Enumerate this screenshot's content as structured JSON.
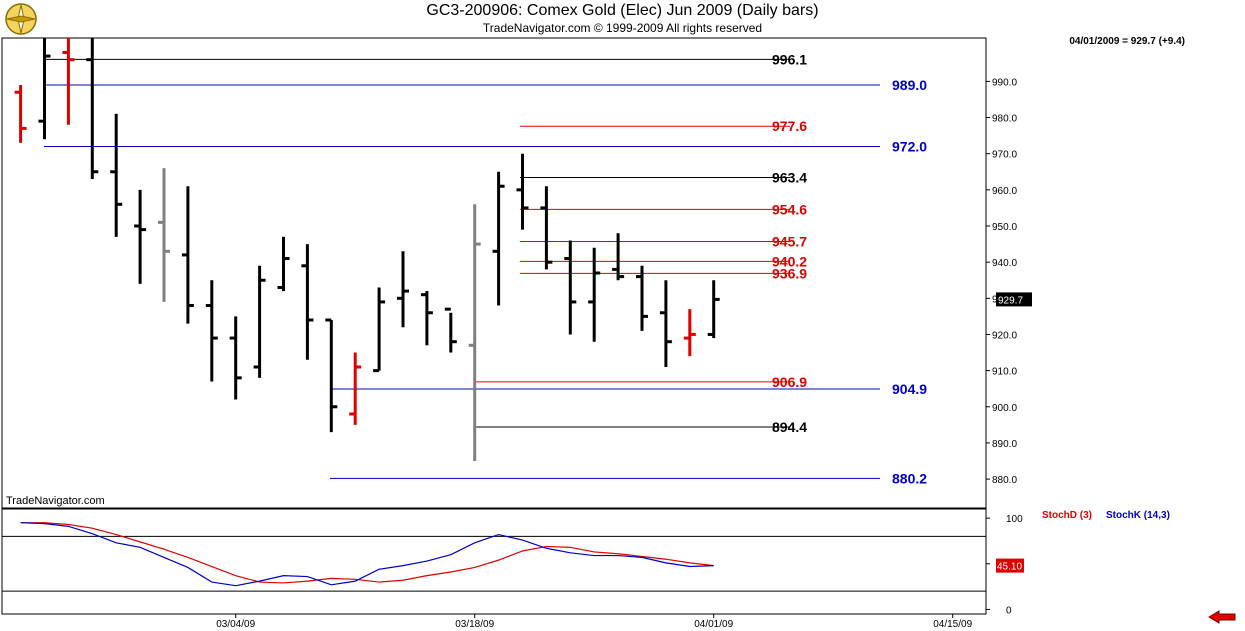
{
  "header": {
    "title": "GC3-200906:  Comex Gold (Elec) Jun 2009  (Daily bars)",
    "copyright": "TradeNavigator.com © 1999-2009 All rights reserved",
    "quote": "04/01/2009 = 929.7 (+9.4)",
    "watermark": "TradeNavigator.com"
  },
  "colors": {
    "bar_up": "#000000",
    "bar_red": "#e00000",
    "bar_gray": "#808080",
    "blue_line": "#0000cc",
    "red_line": "#e00000",
    "black_line": "#000000",
    "stoch_d": "#e00000",
    "stoch_k": "#0000cc"
  },
  "icons": {
    "logo": "compass-logo-icon",
    "scroll": "left-arrow-icon"
  },
  "chart_data": [
    {
      "type": "bar",
      "subtype": "ohlc",
      "ylim": [
        872,
        1002
      ],
      "yticks": [
        "880.0",
        "890.0",
        "900.0",
        "910.0",
        "920.0",
        "930.0",
        "940.0",
        "950.0",
        "960.0",
        "970.0",
        "980.0",
        "990.0"
      ],
      "ytick_values": [
        880,
        890,
        900,
        910,
        920,
        930,
        940,
        950,
        960,
        970,
        980,
        990
      ],
      "xticks": [
        "03/04/09",
        "03/18/09",
        "04/01/09",
        "04/15/09"
      ],
      "xtick_index": [
        9,
        19,
        29,
        39
      ],
      "last_price_label": "929.7",
      "last_price": 929.7,
      "bars": [
        {
          "o": 987,
          "h": 989,
          "l": 973,
          "c": 977,
          "color": "red"
        },
        {
          "o": 979,
          "h": 1002,
          "l": 974,
          "c": 997,
          "color": "black"
        },
        {
          "o": 998,
          "h": 1002,
          "l": 978,
          "c": 996,
          "color": "red"
        },
        {
          "o": 996,
          "h": 1002,
          "l": 963,
          "c": 965,
          "color": "black"
        },
        {
          "o": 965,
          "h": 981,
          "l": 947,
          "c": 956,
          "color": "black"
        },
        {
          "o": 950,
          "h": 960,
          "l": 934,
          "c": 949,
          "color": "black"
        },
        {
          "o": 951,
          "h": 966,
          "l": 929,
          "c": 943,
          "color": "gray"
        },
        {
          "o": 942,
          "h": 961,
          "l": 923,
          "c": 928,
          "color": "black"
        },
        {
          "o": 928,
          "h": 935,
          "l": 907,
          "c": 919,
          "color": "black"
        },
        {
          "o": 919,
          "h": 925,
          "l": 902,
          "c": 908,
          "color": "black"
        },
        {
          "o": 911,
          "h": 939,
          "l": 908,
          "c": 935,
          "color": "black"
        },
        {
          "o": 933,
          "h": 947,
          "l": 932,
          "c": 941,
          "color": "black"
        },
        {
          "o": 939,
          "h": 945,
          "l": 913,
          "c": 924,
          "color": "black"
        },
        {
          "o": 924,
          "h": 924,
          "l": 893,
          "c": 900,
          "color": "black"
        },
        {
          "o": 898,
          "h": 915,
          "l": 895,
          "c": 911,
          "color": "red"
        },
        {
          "o": 910,
          "h": 933,
          "l": 910,
          "c": 929,
          "color": "black"
        },
        {
          "o": 930,
          "h": 943,
          "l": 922,
          "c": 932,
          "color": "black"
        },
        {
          "o": 931,
          "h": 932,
          "l": 917,
          "c": 926,
          "color": "black"
        },
        {
          "o": 927,
          "h": 926,
          "l": 915,
          "c": 918,
          "color": "black"
        },
        {
          "o": 917,
          "h": 956,
          "l": 885,
          "c": 945,
          "color": "gray"
        },
        {
          "o": 943,
          "h": 965,
          "l": 928,
          "c": 961,
          "color": "black"
        },
        {
          "o": 960,
          "h": 970,
          "l": 949,
          "c": 955,
          "color": "black"
        },
        {
          "o": 955,
          "h": 961,
          "l": 938,
          "c": 940,
          "color": "black"
        },
        {
          "o": 941,
          "h": 946,
          "l": 920,
          "c": 929,
          "color": "black"
        },
        {
          "o": 929,
          "h": 944,
          "l": 918,
          "c": 937,
          "color": "black"
        },
        {
          "o": 938,
          "h": 948,
          "l": 935,
          "c": 936,
          "color": "black"
        },
        {
          "o": 936,
          "h": 939,
          "l": 921,
          "c": 925,
          "color": "black"
        },
        {
          "o": 926,
          "h": 935,
          "l": 911,
          "c": 918,
          "color": "black"
        },
        {
          "o": 919,
          "h": 927,
          "l": 914,
          "c": 920,
          "color": "red"
        },
        {
          "o": 920,
          "h": 935,
          "l": 919,
          "c": 929.7,
          "color": "black"
        }
      ],
      "levels": [
        {
          "value": 996.1,
          "label": "996.1",
          "color": "black",
          "label_col": "inner"
        },
        {
          "value": 989.0,
          "label": "989.0",
          "color": "blue",
          "label_col": "outer"
        },
        {
          "value": 977.6,
          "label": "977.6",
          "color": "red",
          "label_col": "inner"
        },
        {
          "value": 972.0,
          "label": "972.0",
          "color": "blue",
          "label_col": "outer"
        },
        {
          "value": 963.4,
          "label": "963.4",
          "color": "black",
          "label_col": "inner"
        },
        {
          "value": 954.6,
          "label": "954.6",
          "color": "red",
          "label_col": "inner"
        },
        {
          "value": 945.7,
          "label": "945.7",
          "color": "red",
          "label_col": "inner"
        },
        {
          "value": 940.2,
          "label": "940.2",
          "color": "red",
          "label_col": "inner"
        },
        {
          "value": 936.9,
          "label": "936.9",
          "color": "red",
          "label_col": "inner"
        },
        {
          "value": 906.9,
          "label": "906.9",
          "color": "red",
          "label_col": "inner"
        },
        {
          "value": 904.9,
          "label": "904.9",
          "color": "blue",
          "label_col": "outer"
        },
        {
          "value": 894.4,
          "label": "894.4",
          "color": "black",
          "label_col": "inner"
        },
        {
          "value": 880.2,
          "label": "880.2",
          "color": "blue",
          "label_col": "outer"
        }
      ]
    },
    {
      "type": "line",
      "ylim": [
        -5,
        110
      ],
      "yticks": [
        "100",
        "50",
        "0"
      ],
      "ytick_values": [
        100,
        50,
        0
      ],
      "reference_lines": [
        80,
        20
      ],
      "last_value_label": "45.10",
      "series": [
        {
          "name": "StochD (3)",
          "color": "red",
          "values": [
            95,
            95,
            93,
            89,
            82,
            74,
            66,
            57,
            47,
            37,
            30,
            29,
            31,
            34,
            33,
            30,
            32,
            37,
            41,
            46,
            54,
            64,
            69,
            68,
            63,
            61,
            58,
            55,
            51,
            48
          ]
        },
        {
          "name": "StochK (14,3)",
          "color": "blue",
          "values": [
            95,
            94,
            91,
            83,
            73,
            68,
            57,
            46,
            30,
            26,
            31,
            37,
            36,
            27,
            31,
            44,
            48,
            53,
            60,
            73,
            82,
            76,
            67,
            62,
            59,
            59,
            57,
            51,
            47,
            48
          ]
        }
      ]
    }
  ]
}
